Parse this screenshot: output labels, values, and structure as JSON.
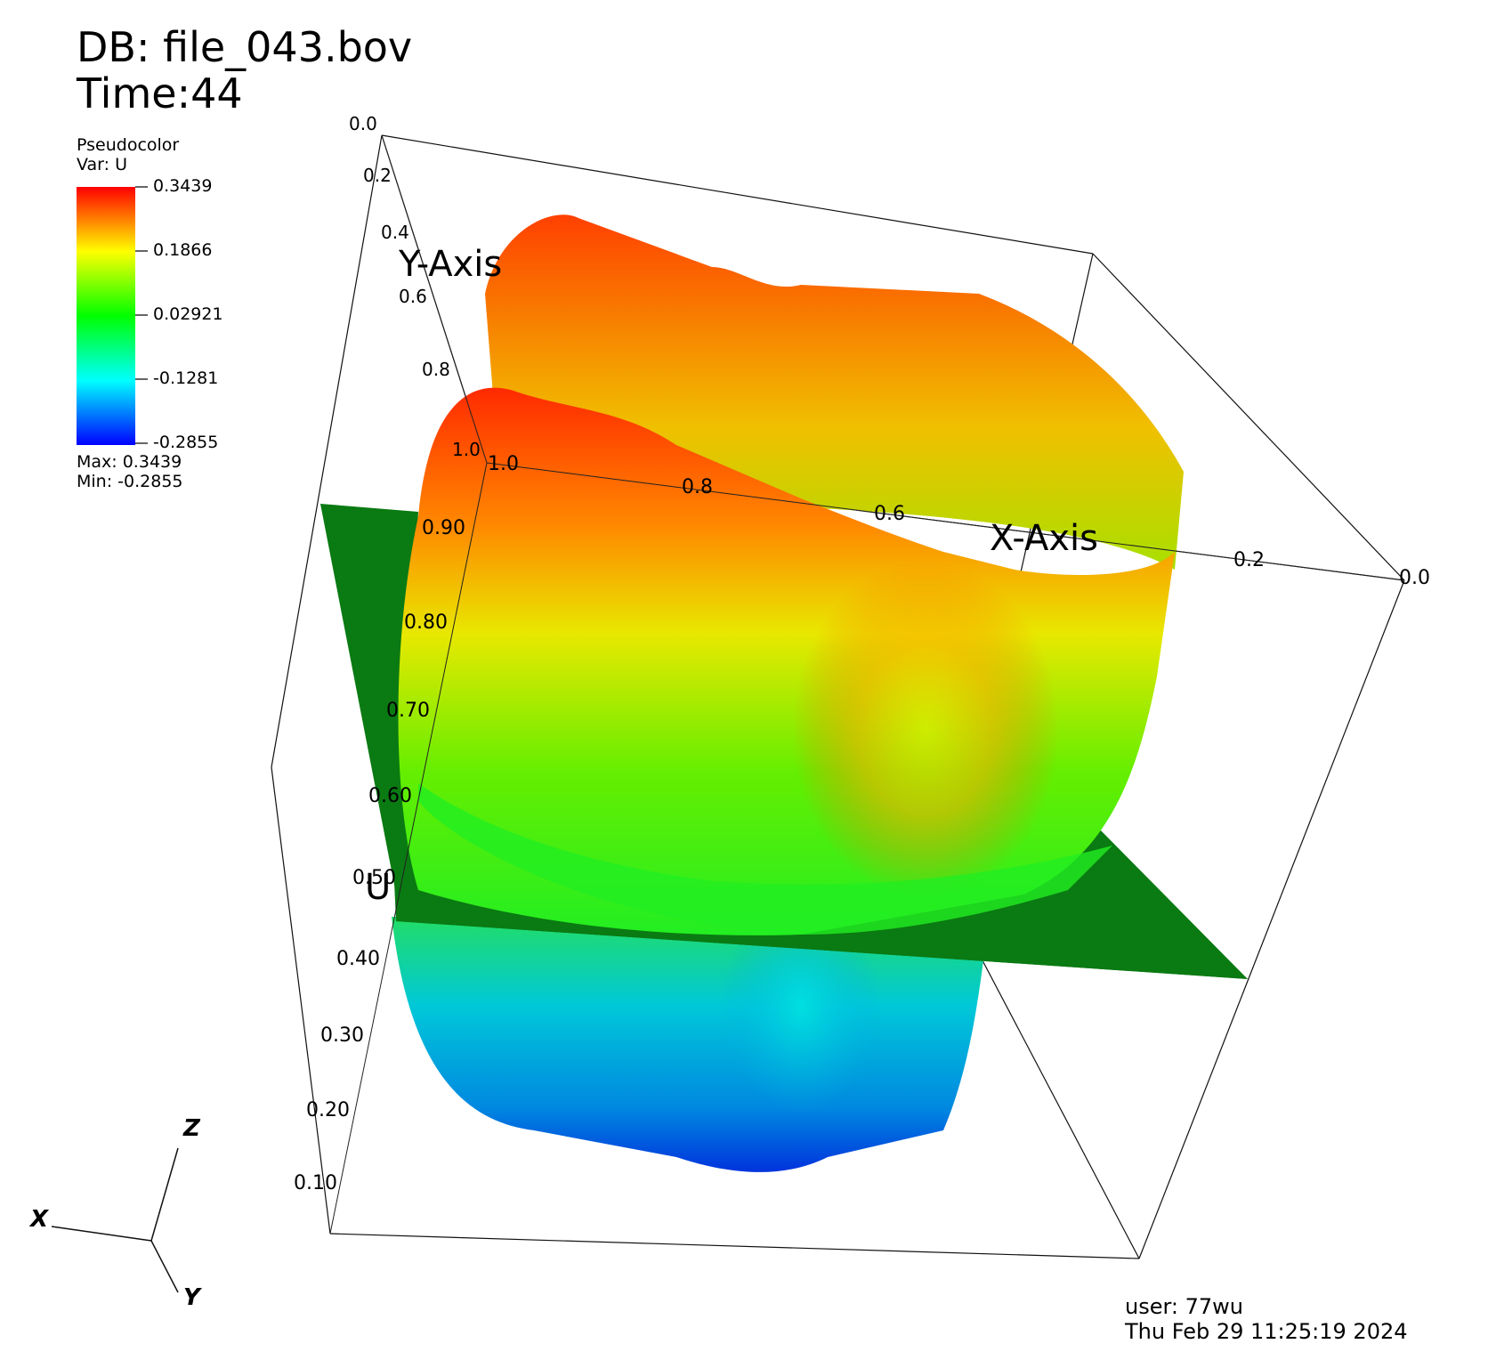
{
  "header": {
    "db": "DB: file_043.bov",
    "time": "Time:44"
  },
  "legend": {
    "plot": "Pseudocolor",
    "var": "Var: U",
    "ticks": [
      "0.3439",
      "0.1866",
      "0.02921",
      "-0.1281",
      "-0.2855"
    ],
    "max": "Max:  0.3439",
    "min": "Min: -0.2855",
    "colors": [
      "#ff0000",
      "#ffff00",
      "#00ff00",
      "#00ffff",
      "#0000ff"
    ]
  },
  "axes": {
    "x_title": "X-Axis",
    "y_title": "Y-Axis",
    "z_title": "U",
    "x_ticks": [
      "1.0",
      "0.8",
      "0.6",
      "0.2",
      "0.0"
    ],
    "y_ticks": [
      "0.0",
      "0.2",
      "0.4",
      "0.6",
      "0.8",
      "1.0"
    ],
    "z_ticks": [
      "0.90",
      "0.80",
      "0.70",
      "0.60",
      "0.50",
      "0.40",
      "0.30",
      "0.20",
      "0.10"
    ]
  },
  "triad": {
    "x": "X",
    "y": "Y",
    "z": "Z"
  },
  "footer": {
    "user": "user: 77wu",
    "date": "Thu Feb 29 11:25:19 2024"
  },
  "chart_data": {
    "type": "surface",
    "variable": "U",
    "xlabel": "X-Axis",
    "ylabel": "Y-Axis",
    "zlabel": "U",
    "xlim": [
      0.0,
      1.0
    ],
    "ylim": [
      0.0,
      1.0
    ],
    "value_range": [
      -0.2855,
      0.3439
    ],
    "colormap": "rainbow",
    "surface_colors": {
      "plane": "#0a7a12",
      "high": "#ff3300",
      "mid": "#e8e800",
      "zero": "#22ee22",
      "low": "#00c8d8",
      "min": "#0033dd"
    }
  }
}
